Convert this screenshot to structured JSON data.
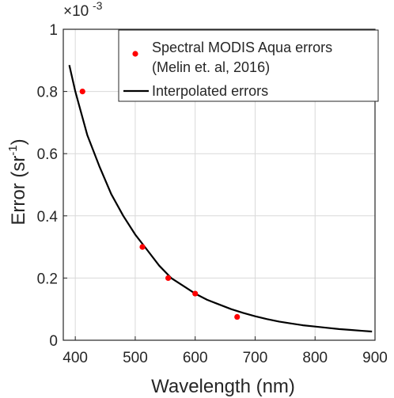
{
  "chart_data": {
    "type": "scatter",
    "xlabel": "Wavelength (nm)",
    "ylabel": "Error (sr",
    "ylabel_superscript": "-1",
    "ylabel_suffix": ")",
    "y_multiplier": {
      "base": "×10",
      "exponent": "-3"
    },
    "xlim": [
      380,
      900
    ],
    "ylim": [
      0,
      1
    ],
    "x_ticks": [
      400,
      500,
      600,
      700,
      800,
      900
    ],
    "y_ticks": [
      0,
      0.2,
      0.4,
      0.6,
      0.8,
      1
    ],
    "x_tick_labels": [
      "400",
      "500",
      "600",
      "700",
      "800",
      "900"
    ],
    "y_tick_labels": [
      "0",
      "0.2",
      "0.4",
      "0.6",
      "0.8",
      "1"
    ],
    "grid": true,
    "legend_position": "top-right",
    "series": [
      {
        "name": "Spectral MODIS Aqua errors",
        "name_line2": "(Melin et. al, 2016)",
        "type": "scatter",
        "color": "#ff0000",
        "points": [
          {
            "x": 412,
            "y": 0.8
          },
          {
            "x": 512,
            "y": 0.3
          },
          {
            "x": 555,
            "y": 0.2
          },
          {
            "x": 600,
            "y": 0.15
          },
          {
            "x": 670,
            "y": 0.075
          }
        ]
      },
      {
        "name": "Interpolated errors",
        "type": "line",
        "color": "#000000",
        "points": [
          {
            "x": 390,
            "y": 0.885
          },
          {
            "x": 400,
            "y": 0.8
          },
          {
            "x": 420,
            "y": 0.66
          },
          {
            "x": 440,
            "y": 0.56
          },
          {
            "x": 460,
            "y": 0.47
          },
          {
            "x": 480,
            "y": 0.4
          },
          {
            "x": 500,
            "y": 0.34
          },
          {
            "x": 520,
            "y": 0.29
          },
          {
            "x": 540,
            "y": 0.24
          },
          {
            "x": 560,
            "y": 0.2
          },
          {
            "x": 580,
            "y": 0.175
          },
          {
            "x": 600,
            "y": 0.15
          },
          {
            "x": 620,
            "y": 0.13
          },
          {
            "x": 640,
            "y": 0.115
          },
          {
            "x": 660,
            "y": 0.1
          },
          {
            "x": 680,
            "y": 0.088
          },
          {
            "x": 700,
            "y": 0.077
          },
          {
            "x": 720,
            "y": 0.068
          },
          {
            "x": 740,
            "y": 0.06
          },
          {
            "x": 760,
            "y": 0.054
          },
          {
            "x": 780,
            "y": 0.048
          },
          {
            "x": 800,
            "y": 0.044
          },
          {
            "x": 820,
            "y": 0.04
          },
          {
            "x": 840,
            "y": 0.036
          },
          {
            "x": 860,
            "y": 0.033
          },
          {
            "x": 880,
            "y": 0.03
          },
          {
            "x": 895,
            "y": 0.028
          }
        ]
      }
    ]
  }
}
